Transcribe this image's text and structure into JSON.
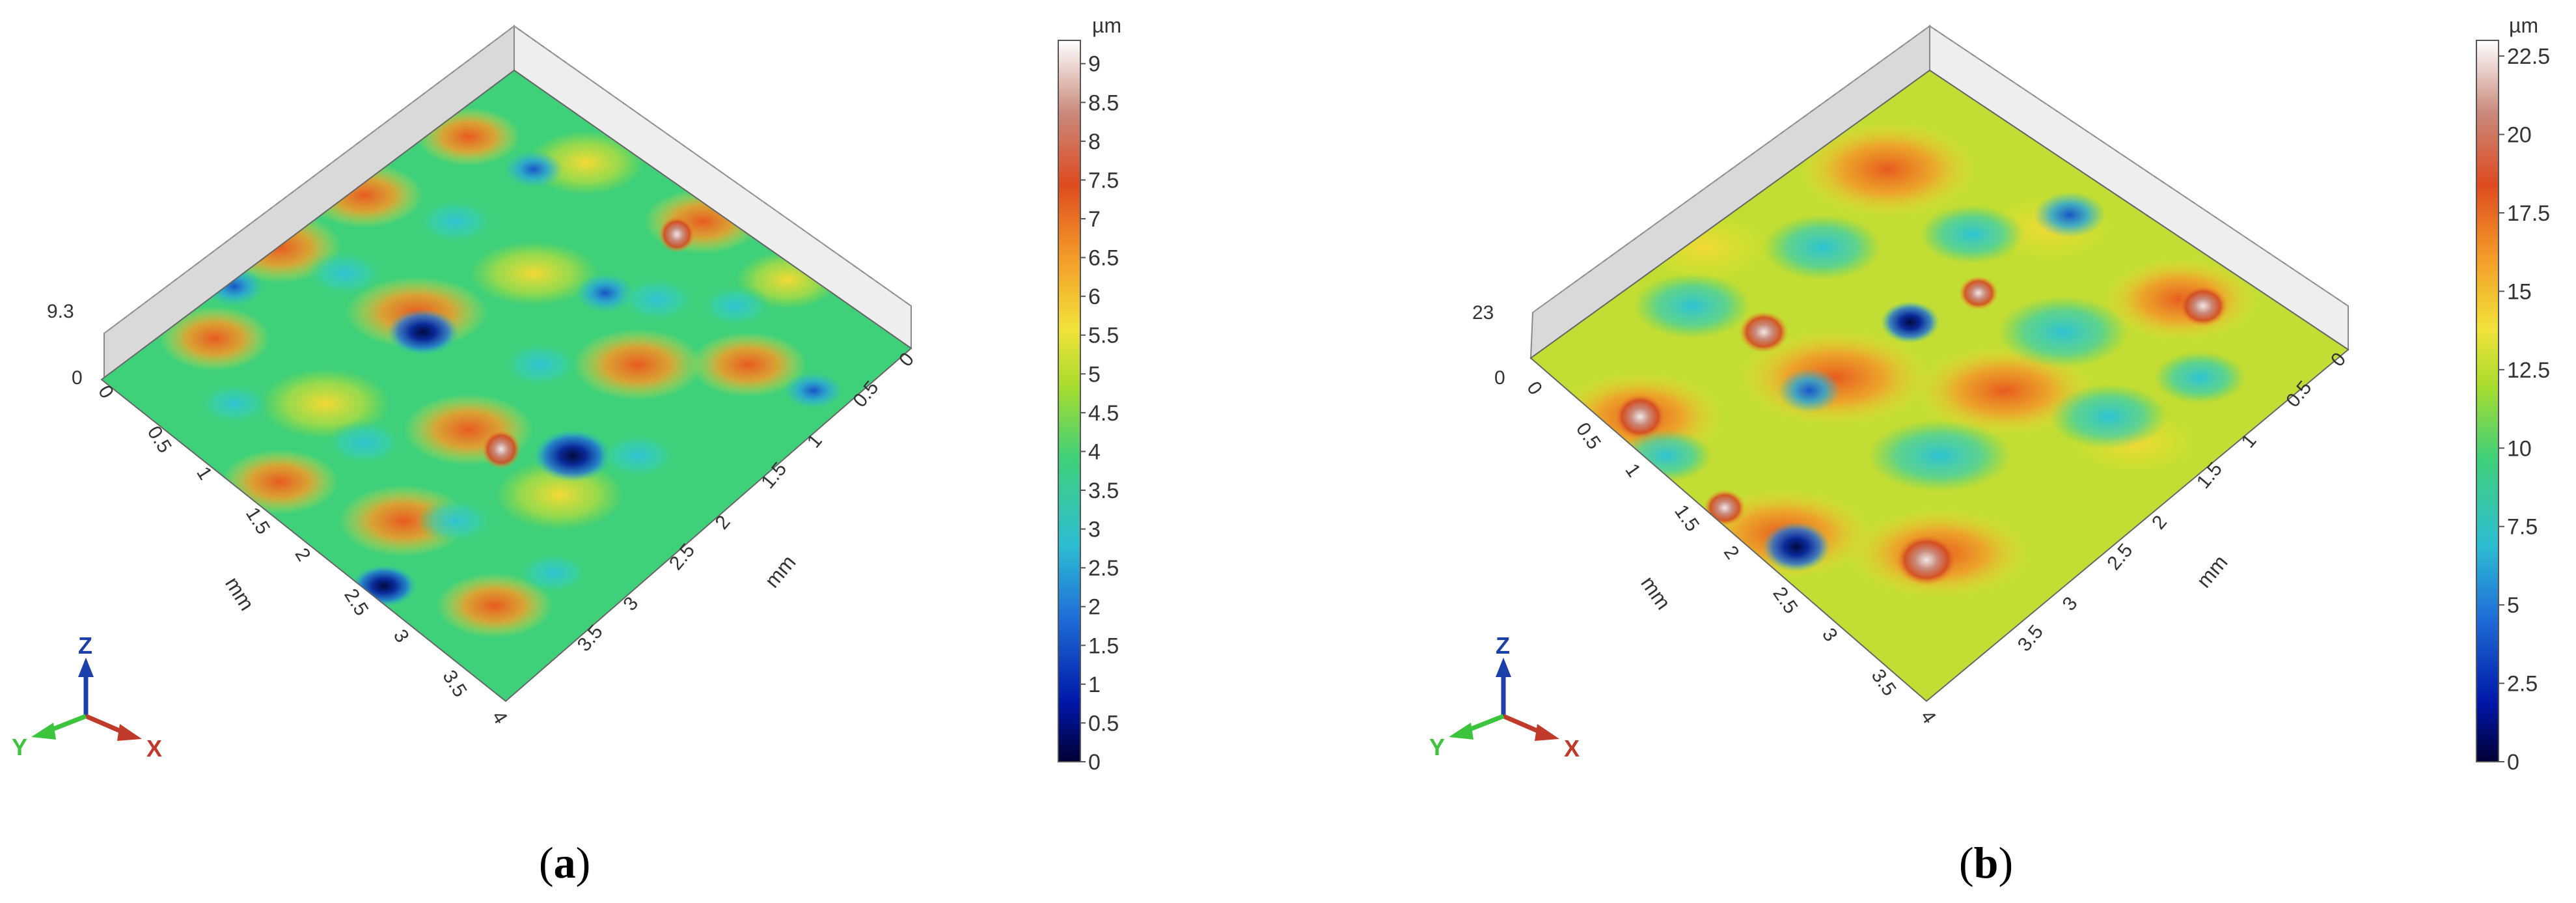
{
  "colors": {
    "scale": [
      "#000033",
      "#0016a8",
      "#1f6ed8",
      "#2cbdd2",
      "#3fd07a",
      "#a7dc2e",
      "#f2e23a",
      "#f39b28",
      "#de4a1f",
      "#c98a7c",
      "#ffffff"
    ],
    "x_axis": "#c0392b",
    "y_axis": "#3cc43c",
    "z_axis": "#1c3faa"
  },
  "panels": [
    {
      "id": "a",
      "label_letter": "a",
      "z_max_label": "9.3",
      "z_min_label": "0",
      "x_ticks": [
        "0",
        "0.5",
        "1",
        "1.5",
        "2",
        "2.5",
        "3",
        "3.5",
        "4"
      ],
      "y_ticks": [
        "0",
        "0.5",
        "1",
        "1.5",
        "2",
        "2.5",
        "3",
        "3.5"
      ],
      "x_unit": "mm",
      "y_unit": "mm",
      "colorbar": {
        "unit": "µm",
        "min": 0,
        "max": 9.3,
        "ticks": [
          "0",
          "0.5",
          "1",
          "1.5",
          "2",
          "2.5",
          "3",
          "3.5",
          "4",
          "4.5",
          "5",
          "5.5",
          "6",
          "6.5",
          "7",
          "7.5",
          "8",
          "8.5",
          "9"
        ]
      },
      "axes": {
        "z": "Z",
        "y": "Y",
        "x": "X"
      }
    },
    {
      "id": "b",
      "label_letter": "b",
      "z_max_label": "23",
      "z_min_label": "0",
      "x_ticks": [
        "0",
        "0.5",
        "1",
        "1.5",
        "2",
        "2.5",
        "3",
        "3.5",
        "4"
      ],
      "y_ticks": [
        "0",
        "0.5",
        "1",
        "1.5",
        "2",
        "2.5",
        "3",
        "3.5"
      ],
      "x_unit": "mm",
      "y_unit": "mm",
      "colorbar": {
        "unit": "µm",
        "min": 0,
        "max": 23,
        "ticks": [
          "0",
          "2.5",
          "5",
          "7.5",
          "10",
          "12.5",
          "15",
          "17.5",
          "20",
          "22.5"
        ]
      },
      "axes": {
        "z": "Z",
        "y": "Y",
        "x": "X"
      }
    }
  ]
}
